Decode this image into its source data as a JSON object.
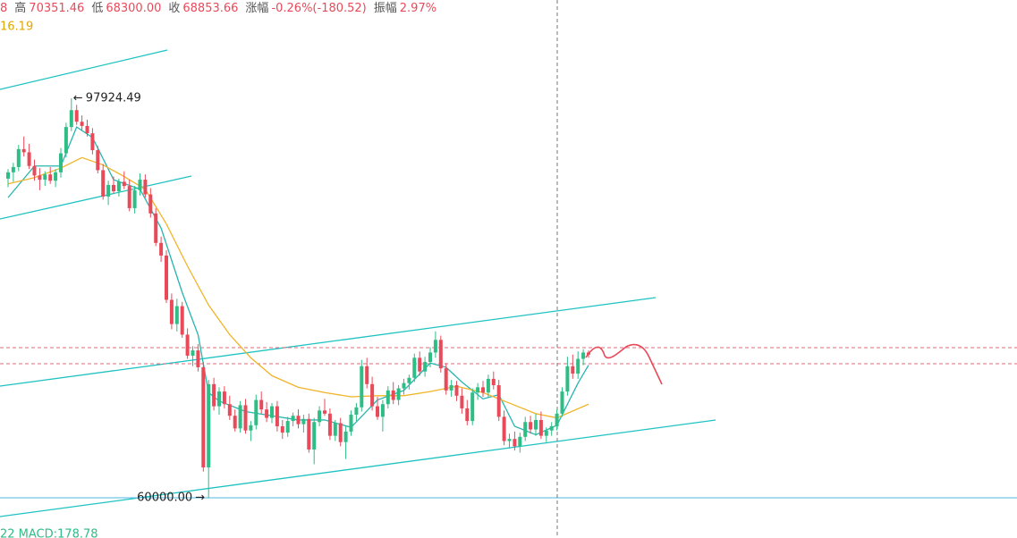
{
  "chart_data": {
    "type": "candlestick",
    "header": [
      "8",
      "高",
      "70351.46",
      "低",
      "68300.00",
      "收",
      "68853.66",
      "涨幅",
      "-0.26%(-180.52)",
      "振幅",
      "2.97%"
    ],
    "ma_label": "16.19",
    "macd_label": "22  MACD:178.78",
    "up_color": "#2ebd85",
    "down_color": "#e84a5a",
    "ylim": [
      56200,
      107250
    ],
    "high_label": {
      "value": 97924.49,
      "label": "97924.49"
    },
    "low_label": {
      "value": 60000,
      "label": "60000.00"
    },
    "candles": [
      [
        90300,
        91200,
        89500,
        90900
      ],
      [
        90900,
        91800,
        90000,
        91400
      ],
      [
        91400,
        93500,
        91000,
        93100
      ],
      [
        93100,
        94300,
        92400,
        92800
      ],
      [
        92800,
        93600,
        91200,
        91500
      ],
      [
        91500,
        92100,
        90100,
        90600
      ],
      [
        90600,
        91300,
        89200,
        90200
      ],
      [
        90200,
        91000,
        89600,
        90700
      ],
      [
        90700,
        91400,
        89800,
        90100
      ],
      [
        90100,
        91200,
        89500,
        90900
      ],
      [
        90900,
        93200,
        90400,
        92700
      ],
      [
        92700,
        95600,
        92300,
        95200
      ],
      [
        95200,
        97924.49,
        94800,
        96800
      ],
      [
        96800,
        97300,
        95400,
        95700
      ],
      [
        95700,
        96300,
        94900,
        95300
      ],
      [
        95300,
        95900,
        94300,
        94600
      ],
      [
        94600,
        95100,
        92600,
        93000
      ],
      [
        93000,
        93400,
        90800,
        91100
      ],
      [
        91100,
        91700,
        88300,
        88600
      ],
      [
        88600,
        90100,
        87800,
        89700
      ],
      [
        89700,
        90500,
        88900,
        89100
      ],
      [
        89100,
        90300,
        88600,
        90000
      ],
      [
        90000,
        91000,
        89300,
        89600
      ],
      [
        89600,
        90200,
        87200,
        87500
      ],
      [
        87500,
        89600,
        87000,
        89200
      ],
      [
        89200,
        90800,
        88700,
        90200
      ],
      [
        90200,
        90700,
        88500,
        88800
      ],
      [
        88800,
        89400,
        86600,
        87000
      ],
      [
        87000,
        87500,
        83900,
        84200
      ],
      [
        84200,
        84800,
        82400,
        83000
      ],
      [
        83000,
        83500,
        78500,
        78800
      ],
      [
        78800,
        79400,
        76000,
        76500
      ],
      [
        76500,
        78900,
        75800,
        78200
      ],
      [
        78200,
        78600,
        75200,
        75500
      ],
      [
        75500,
        76100,
        73200,
        73500
      ],
      [
        73500,
        74400,
        72500,
        74000
      ],
      [
        74000,
        74600,
        72000,
        72400
      ],
      [
        72400,
        72900,
        62500,
        62900
      ],
      [
        62900,
        71200,
        60000,
        70800
      ],
      [
        70800,
        71400,
        68300,
        68700
      ],
      [
        68700,
        70500,
        67900,
        70100
      ],
      [
        70100,
        70600,
        68500,
        68900
      ],
      [
        68900,
        69700,
        67400,
        67800
      ],
      [
        67800,
        68400,
        66300,
        66600
      ],
      [
        66600,
        69200,
        66200,
        68800
      ],
      [
        68800,
        69400,
        66100,
        66400
      ],
      [
        66400,
        67300,
        65400,
        66900
      ],
      [
        66900,
        69800,
        66500,
        69300
      ],
      [
        69300,
        70100,
        68000,
        68400
      ],
      [
        68400,
        69100,
        67200,
        67600
      ],
      [
        67600,
        69000,
        67100,
        68700
      ],
      [
        68700,
        69200,
        66300,
        66800
      ],
      [
        66800,
        67400,
        65600,
        66200
      ],
      [
        66200,
        67700,
        65800,
        67300
      ],
      [
        67300,
        68100,
        66800,
        67800
      ],
      [
        67800,
        68400,
        66600,
        67000
      ],
      [
        67000,
        67900,
        66200,
        67500
      ],
      [
        67500,
        68000,
        64300,
        64600
      ],
      [
        64600,
        67600,
        63200,
        67200
      ],
      [
        67200,
        68700,
        66800,
        68300
      ],
      [
        68300,
        69400,
        67800,
        68000
      ],
      [
        68000,
        68500,
        65500,
        65900
      ],
      [
        65900,
        67400,
        65400,
        67100
      ],
      [
        67100,
        67600,
        64900,
        65300
      ],
      [
        65300,
        66800,
        63700,
        66300
      ],
      [
        66300,
        68300,
        65900,
        67900
      ],
      [
        67900,
        69000,
        67300,
        68600
      ],
      [
        68600,
        73100,
        68200,
        72500
      ],
      [
        72500,
        73300,
        70400,
        70800
      ],
      [
        70800,
        71500,
        68300,
        68700
      ],
      [
        68700,
        69600,
        67400,
        67700
      ],
      [
        67700,
        69300,
        66300,
        68900
      ],
      [
        68900,
        70600,
        68500,
        70200
      ],
      [
        70200,
        71000,
        68900,
        69300
      ],
      [
        69300,
        70700,
        68800,
        70400
      ],
      [
        70400,
        71300,
        69800,
        70900
      ],
      [
        70900,
        71700,
        70300,
        71400
      ],
      [
        71400,
        73700,
        71000,
        73300
      ],
      [
        73300,
        73900,
        71600,
        72000
      ],
      [
        72000,
        73400,
        71500,
        72900
      ],
      [
        72900,
        74300,
        72400,
        73800
      ],
      [
        73800,
        75800,
        73300,
        75000
      ],
      [
        75000,
        75400,
        71900,
        72300
      ],
      [
        72300,
        72800,
        69800,
        70200
      ],
      [
        70200,
        71200,
        69600,
        70700
      ],
      [
        70700,
        71100,
        69200,
        69700
      ],
      [
        69700,
        70400,
        68000,
        68500
      ],
      [
        68500,
        69300,
        66900,
        67300
      ],
      [
        67300,
        70400,
        66900,
        70000
      ],
      [
        70000,
        70900,
        69300,
        70500
      ],
      [
        70500,
        71100,
        69600,
        70000
      ],
      [
        70000,
        71700,
        69500,
        71300
      ],
      [
        71300,
        72000,
        70300,
        70700
      ],
      [
        70700,
        71200,
        67300,
        67700
      ],
      [
        67700,
        68300,
        65000,
        65400
      ],
      [
        65400,
        66100,
        64700,
        65600
      ],
      [
        65600,
        66300,
        64500,
        64900
      ],
      [
        64900,
        66200,
        64300,
        65800
      ],
      [
        65800,
        67700,
        65400,
        67200
      ],
      [
        67200,
        67800,
        66100,
        66500
      ],
      [
        66500,
        68000,
        65900,
        67400
      ],
      [
        67400,
        68200,
        65600,
        65900
      ],
      [
        65900,
        66700,
        65300,
        66400
      ],
      [
        66400,
        67200,
        65900,
        66800
      ],
      [
        66800,
        68400,
        66400,
        68000
      ],
      [
        68000,
        70500,
        67700,
        70100
      ],
      [
        70100,
        73400,
        69700,
        72500
      ],
      [
        72500,
        73600,
        71300,
        71800
      ],
      [
        71800,
        73900,
        71300,
        73200
      ],
      [
        73200,
        74100,
        72600,
        73800
      ],
      [
        73800,
        74000,
        73300,
        73600
      ]
    ],
    "ma_lines": [
      {
        "color": "#26b5b0",
        "x": [
          0,
          5,
          10,
          13,
          16,
          20,
          25,
          29,
          33,
          36,
          38,
          40,
          45,
          50,
          55,
          60,
          65,
          70,
          75,
          80,
          83,
          86,
          90,
          93,
          96,
          100,
          104,
          108,
          110
        ],
        "values": [
          88500,
          91500,
          91500,
          95200,
          94200,
          90200,
          89300,
          85600,
          79500,
          75500,
          70000,
          69200,
          68200,
          67800,
          67400,
          67400,
          66700,
          69300,
          70200,
          72800,
          72400,
          71000,
          69400,
          69800,
          66800,
          66000,
          66900,
          70900,
          72600
        ]
      },
      {
        "color": "#f0b429",
        "x": [
          0,
          5,
          10,
          14,
          18,
          22,
          26,
          30,
          34,
          38,
          42,
          46,
          50,
          55,
          60,
          65,
          70,
          75,
          80,
          85,
          90,
          95,
          100,
          104,
          110
        ],
        "values": [
          89800,
          90400,
          91300,
          92300,
          91600,
          90500,
          89300,
          86000,
          82000,
          78300,
          75500,
          73300,
          71600,
          70500,
          70000,
          69600,
          69700,
          69700,
          70100,
          70600,
          70000,
          69000,
          68000,
          67600,
          68900
        ]
      }
    ]
  }
}
